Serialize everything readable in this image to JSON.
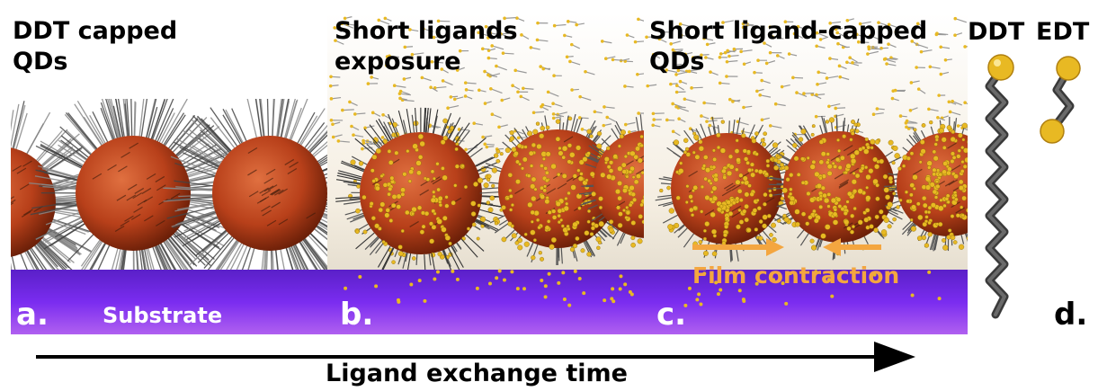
{
  "panels": {
    "a": {
      "title_line1": "DDT capped",
      "title_line2": "QDs",
      "letter": "a.",
      "substrate_label": "Substrate"
    },
    "b": {
      "title_line1": "Short ligands",
      "title_line2": "exposure",
      "letter": "b."
    },
    "c": {
      "title_line1": "Short ligand-capped",
      "title_line2": "QDs",
      "letter": "c.",
      "contraction_label": "Film contraction"
    },
    "d": {
      "ddt_label": "DDT",
      "edt_label": "EDT",
      "letter": "d."
    }
  },
  "axis": {
    "label": "Ligand exchange time"
  },
  "colors": {
    "substrate": "#7a2cf0",
    "qd_core": "#b8401a",
    "ligand_gold": "#e8b923",
    "ligand_gray": "#555555",
    "contraction_arrow": "#f4a640"
  }
}
